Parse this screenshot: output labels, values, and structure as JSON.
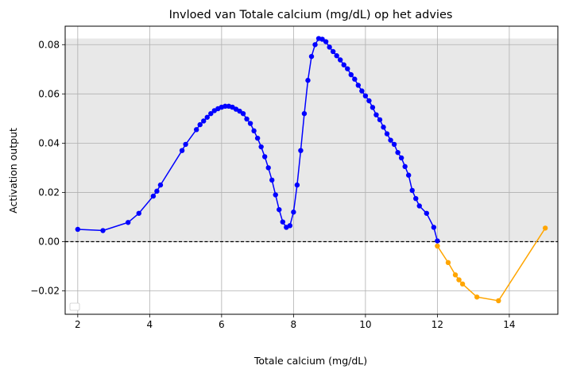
{
  "chart_data": {
    "type": "line",
    "title": "Invloed van Totale calcium (mg/dL) op het advies",
    "xlabel": "Totale calcium (mg/dL)",
    "ylabel": "Activation output",
    "xlim": [
      1.65,
      15.35
    ],
    "ylim": [
      -0.0295,
      0.0875
    ],
    "xticks": [
      2,
      4,
      6,
      8,
      10,
      12,
      14
    ],
    "xtick_labels": [
      "2",
      "4",
      "6",
      "8",
      "10",
      "12",
      "14"
    ],
    "yticks": [
      -0.02,
      0.0,
      0.02,
      0.04,
      0.06,
      0.08
    ],
    "ytick_labels": [
      "−0.02",
      "0.00",
      "0.02",
      "0.04",
      "0.06",
      "0.08"
    ],
    "grid": true,
    "shaded_band": [
      0.0,
      0.0825
    ],
    "shade_color": "#e8e8e8",
    "reference_line": 0.0,
    "legend": "lower-left (empty)",
    "series": [
      {
        "color": "#0000ff",
        "x": [
          2.0,
          2.7,
          3.4,
          3.7,
          4.1,
          4.2,
          4.3,
          4.9,
          5.0,
          5.3,
          5.4,
          5.5,
          5.6,
          5.7,
          5.8,
          5.9,
          6.0,
          6.1,
          6.2,
          6.3,
          6.4,
          6.5,
          6.6,
          6.7,
          6.8,
          6.9,
          7.0,
          7.1,
          7.2,
          7.3,
          7.4,
          7.5,
          7.6,
          7.7,
          7.8,
          7.9,
          8.0,
          8.1,
          8.2,
          8.3,
          8.4,
          8.5,
          8.6,
          8.7,
          8.8,
          8.9,
          9.0,
          9.1,
          9.2,
          9.3,
          9.4,
          9.5,
          9.6,
          9.7,
          9.8,
          9.9,
          10.0,
          10.1,
          10.2,
          10.3,
          10.4,
          10.5,
          10.6,
          10.7,
          10.8,
          10.9,
          11.0,
          11.1,
          11.2,
          11.3,
          11.4,
          11.5,
          11.7,
          11.9,
          12.0
        ],
        "values": [
          0.005,
          0.0045,
          0.0078,
          0.0115,
          0.0185,
          0.0205,
          0.023,
          0.037,
          0.0395,
          0.0455,
          0.0475,
          0.049,
          0.0505,
          0.052,
          0.0532,
          0.054,
          0.0546,
          0.055,
          0.055,
          0.0546,
          0.0538,
          0.053,
          0.052,
          0.0498,
          0.048,
          0.045,
          0.042,
          0.0385,
          0.0345,
          0.03,
          0.025,
          0.019,
          0.013,
          0.008,
          0.0058,
          0.0065,
          0.012,
          0.023,
          0.037,
          0.052,
          0.0655,
          0.0752,
          0.08,
          0.0825,
          0.0822,
          0.0812,
          0.079,
          0.0772,
          0.0755,
          0.0738,
          0.0718,
          0.0702,
          0.0678,
          0.066,
          0.0635,
          0.0612,
          0.0592,
          0.0572,
          0.0545,
          0.0515,
          0.0495,
          0.0465,
          0.0438,
          0.0412,
          0.0395,
          0.0362,
          0.034,
          0.0305,
          0.027,
          0.0208,
          0.0175,
          0.0145,
          0.0115,
          0.0058,
          0.0003
        ]
      },
      {
        "color": "#ffa500",
        "x": [
          12.0,
          12.3,
          12.5,
          12.6,
          12.7,
          13.1,
          13.7,
          15.0
        ],
        "values": [
          -0.0018,
          -0.0085,
          -0.0135,
          -0.0155,
          -0.0172,
          -0.0225,
          -0.024,
          0.0055
        ]
      }
    ]
  }
}
